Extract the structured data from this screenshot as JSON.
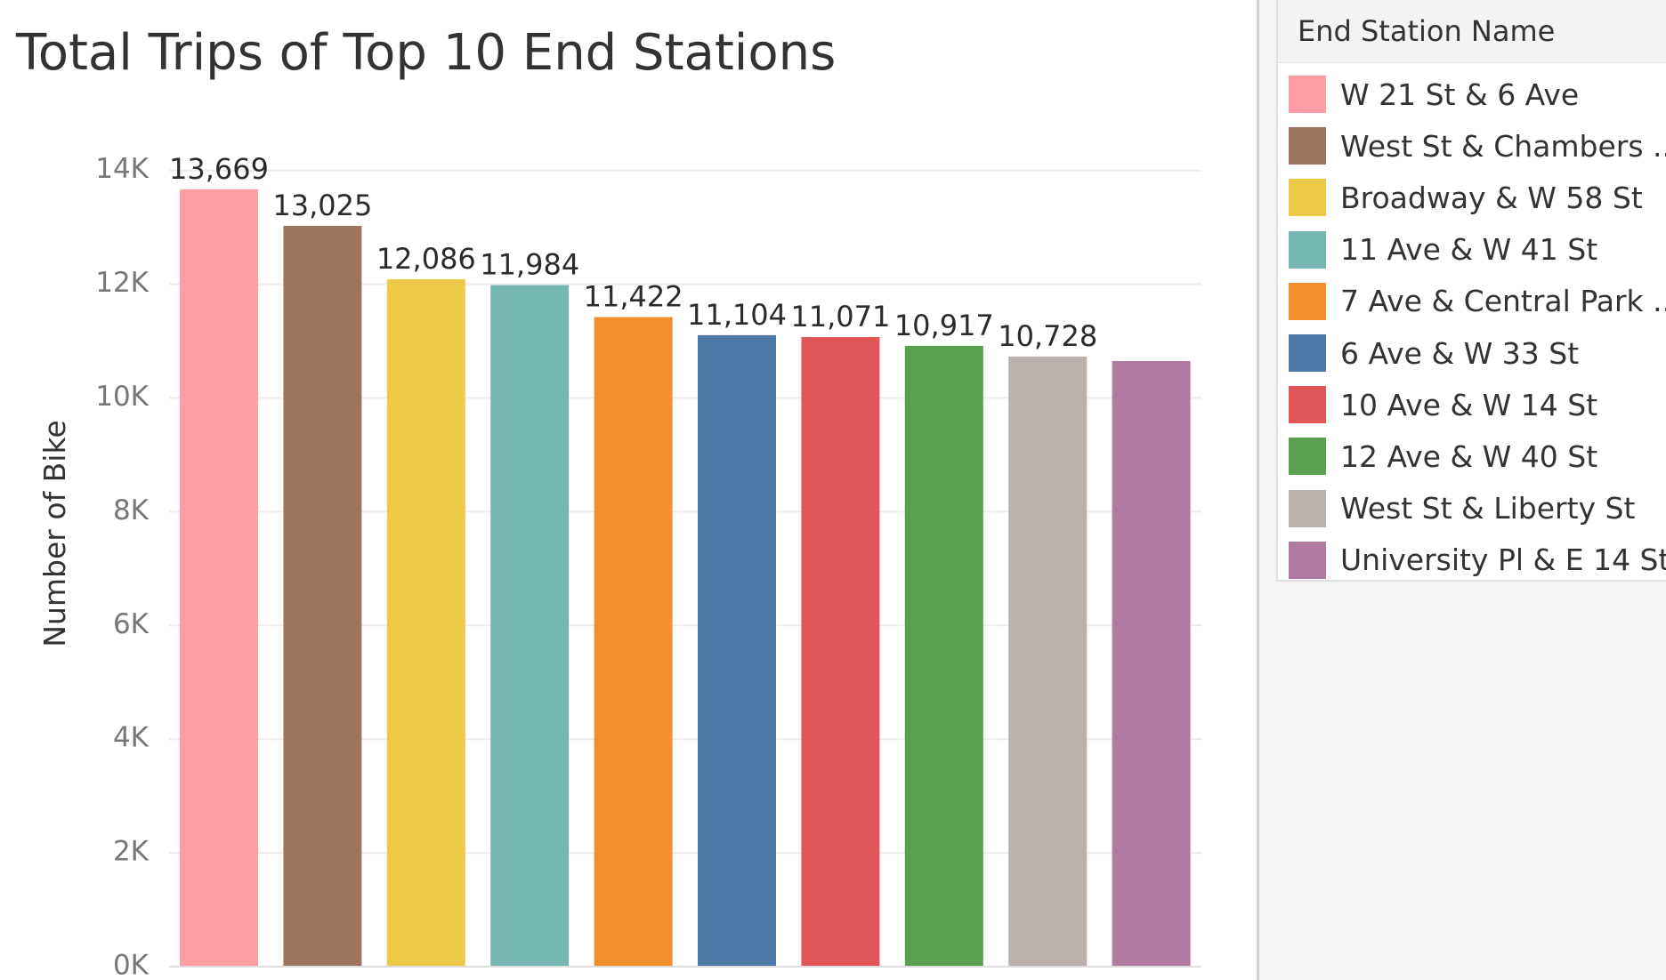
{
  "chart_data": {
    "type": "bar",
    "title": "Total Trips of Top 10 End Stations",
    "ylabel": "Number of Bike",
    "xlabel": "",
    "ylim": [
      0,
      15000
    ],
    "grid": true,
    "yticks": [
      {
        "value": 0,
        "label": "0K"
      },
      {
        "value": 2000,
        "label": "2K"
      },
      {
        "value": 4000,
        "label": "4K"
      },
      {
        "value": 6000,
        "label": "6K"
      },
      {
        "value": 8000,
        "label": "8K"
      },
      {
        "value": 10000,
        "label": "10K"
      },
      {
        "value": 12000,
        "label": "12K"
      },
      {
        "value": 14000,
        "label": "14K"
      }
    ],
    "categories": [
      "W 21 St & 6 Ave",
      "West St & Chambers ..",
      "Broadway & W 58 St",
      "11 Ave & W 41 St",
      "7 Ave & Central Park ..",
      "6 Ave & W 33 St",
      "10 Ave & W 14 St",
      "12 Ave & W 40 St",
      "West St & Liberty St",
      "University Pl & E 14 St"
    ],
    "values": [
      13669,
      13025,
      12086,
      11984,
      11422,
      11104,
      11071,
      10917,
      10728,
      10650
    ],
    "data_labels": [
      "13,669",
      "13,025",
      "12,086",
      "11,984",
      "11,422",
      "11,104",
      "11,071",
      "10,917",
      "10,728",
      ""
    ],
    "colors": [
      "#ff9da7",
      "#9c755f",
      "#edc948",
      "#76b7b2",
      "#f28e2b",
      "#4e79a7",
      "#e15759",
      "#59a14f",
      "#bab0ac",
      "#b07aa1"
    ],
    "legend_title": "End Station Name",
    "legend_placement": "right"
  }
}
